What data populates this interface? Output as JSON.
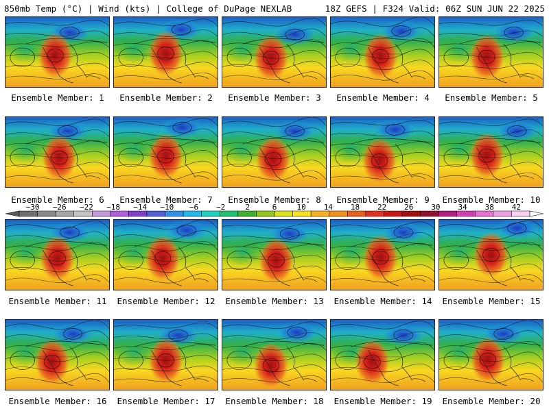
{
  "header": {
    "left": "850mb Temp (°C) | Wind (kts) | College of DuPage NEXLAB",
    "right": "18Z GEFS | F324 Valid: 06Z SUN JUN 22 2025"
  },
  "members": [
    {
      "label": "Ensemble Member: 1",
      "hot": [
        0.48,
        0.55
      ],
      "cold": [
        0.62,
        0.22
      ]
    },
    {
      "label": "Ensemble Member: 2",
      "hot": [
        0.5,
        0.52
      ],
      "cold": [
        0.65,
        0.18
      ]
    },
    {
      "label": "Ensemble Member: 3",
      "hot": [
        0.47,
        0.58
      ],
      "cold": [
        0.7,
        0.25
      ]
    },
    {
      "label": "Ensemble Member: 4",
      "hot": [
        0.48,
        0.56
      ],
      "cold": [
        0.68,
        0.2
      ]
    },
    {
      "label": "Ensemble Member: 5",
      "hot": [
        0.46,
        0.57
      ],
      "cold": [
        0.72,
        0.22
      ]
    },
    {
      "label": "Ensemble Member: 6",
      "hot": [
        0.52,
        0.58
      ],
      "cold": [
        0.6,
        0.2
      ]
    },
    {
      "label": "Ensemble Member: 7",
      "hot": [
        0.5,
        0.56
      ],
      "cold": [
        0.66,
        0.15
      ]
    },
    {
      "label": "Ensemble Member: 8",
      "hot": [
        0.49,
        0.6
      ],
      "cold": [
        0.7,
        0.2
      ]
    },
    {
      "label": "Ensemble Member: 9",
      "hot": [
        0.47,
        0.62
      ],
      "cold": [
        0.62,
        0.18
      ]
    },
    {
      "label": "Ensemble Member: 10",
      "hot": [
        0.46,
        0.55
      ],
      "cold": [
        0.75,
        0.2
      ]
    },
    {
      "label": "Ensemble Member: 11",
      "hot": [
        0.5,
        0.55
      ],
      "cold": [
        0.62,
        0.18
      ]
    },
    {
      "label": "Ensemble Member: 12",
      "hot": [
        0.47,
        0.55
      ],
      "cold": [
        0.7,
        0.15
      ]
    },
    {
      "label": "Ensemble Member: 13",
      "hot": [
        0.52,
        0.58
      ],
      "cold": [
        0.65,
        0.2
      ]
    },
    {
      "label": "Ensemble Member: 14",
      "hot": [
        0.48,
        0.54
      ],
      "cold": [
        0.7,
        0.18
      ]
    },
    {
      "label": "Ensemble Member: 15",
      "hot": [
        0.5,
        0.5
      ],
      "cold": [
        0.75,
        0.12
      ]
    },
    {
      "label": "Ensemble Member: 16",
      "hot": [
        0.45,
        0.6
      ],
      "cold": [
        0.65,
        0.2
      ]
    },
    {
      "label": "Ensemble Member: 17",
      "hot": [
        0.5,
        0.58
      ],
      "cold": [
        0.62,
        0.22
      ]
    },
    {
      "label": "Ensemble Member: 18",
      "hot": [
        0.47,
        0.65
      ],
      "cold": [
        0.72,
        0.18
      ]
    },
    {
      "label": "Ensemble Member: 19",
      "hot": [
        0.4,
        0.6
      ],
      "cold": [
        0.7,
        0.22
      ]
    },
    {
      "label": "Ensemble Member: 20",
      "hot": [
        0.47,
        0.57
      ],
      "cold": [
        0.62,
        0.2
      ]
    }
  ],
  "colorbar": {
    "tick_labels": [
      "−30",
      "−26",
      "−22",
      "−18",
      "−14",
      "−10",
      "−6",
      "−2",
      "2",
      "6",
      "10",
      "14",
      "18",
      "22",
      "26",
      "30",
      "34",
      "38",
      "42"
    ],
    "colors": [
      "#6e6e6e",
      "#8a8a8a",
      "#a6a6a6",
      "#c4c4c4",
      "#c49ad8",
      "#b060d8",
      "#8040c8",
      "#5060d0",
      "#3090e8",
      "#20b8e8",
      "#20d0c0",
      "#20c070",
      "#40b030",
      "#90c820",
      "#d8e020",
      "#f8e020",
      "#f8b020",
      "#f09020",
      "#e86020",
      "#e03020",
      "#c81818",
      "#a01010",
      "#901030",
      "#b02080",
      "#d040b0",
      "#e870d0",
      "#f0a0e0",
      "#f8d0f0"
    ]
  }
}
